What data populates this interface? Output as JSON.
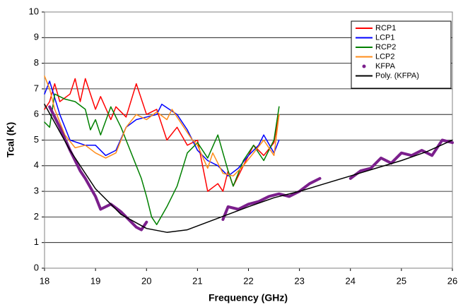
{
  "chart_data": {
    "type": "line",
    "x_label": "Frequency (GHz)",
    "y_label": "Tcal (K)",
    "xlim": [
      18,
      26
    ],
    "xticks": [
      18,
      19,
      20,
      21,
      22,
      23,
      24,
      25,
      26
    ],
    "ylim": [
      0,
      10
    ],
    "yticks": [
      0,
      1,
      2,
      3,
      4,
      5,
      6,
      7,
      8,
      9,
      10
    ],
    "grid": true,
    "legend": "upper right",
    "series": [
      {
        "name": "RCP1",
        "color": "#ff0000",
        "x": [
          18,
          18.1,
          18.2,
          18.3,
          18.5,
          18.6,
          18.7,
          18.8,
          19.0,
          19.1,
          19.3,
          19.4,
          19.6,
          19.8,
          20.0,
          20.2,
          20.4,
          20.6,
          20.8,
          21.0,
          21.1,
          21.2,
          21.4,
          21.5,
          21.6,
          21.7,
          21.9,
          22.1,
          22.3,
          22.5,
          22.6
        ],
        "values": [
          6.2,
          6.5,
          7.2,
          6.5,
          6.8,
          7.4,
          6.5,
          7.4,
          6.2,
          6.7,
          5.8,
          6.3,
          5.9,
          7.2,
          6.0,
          6.2,
          5.0,
          5.5,
          4.8,
          5.0,
          4.0,
          3.0,
          3.3,
          3.0,
          3.8,
          3.2,
          4.0,
          4.8,
          4.4,
          4.9,
          6.0
        ]
      },
      {
        "name": "LCP1",
        "color": "#0000ff",
        "x": [
          18,
          18.1,
          18.3,
          18.5,
          18.8,
          19.0,
          19.2,
          19.4,
          19.6,
          19.8,
          20.0,
          20.2,
          20.3,
          20.6,
          20.8,
          21.0,
          21.2,
          21.4,
          21.6,
          21.8,
          22.0,
          22.2,
          22.3,
          22.5,
          22.6
        ],
        "values": [
          6.8,
          7.3,
          6.0,
          5.0,
          4.8,
          4.8,
          4.4,
          4.6,
          5.5,
          5.8,
          5.9,
          6.0,
          6.4,
          6.0,
          5.4,
          4.6,
          4.2,
          4.0,
          3.6,
          3.9,
          4.4,
          4.8,
          5.2,
          4.5,
          5.0
        ]
      },
      {
        "name": "RCP2",
        "color": "#008000",
        "x": [
          18,
          18.1,
          18.2,
          18.4,
          18.6,
          18.8,
          18.9,
          19.0,
          19.1,
          19.3,
          19.5,
          19.6,
          19.8,
          19.9,
          20.0,
          20.1,
          20.2,
          20.4,
          20.6,
          20.8,
          21.0,
          21.2,
          21.4,
          21.5,
          21.6,
          21.7,
          21.9,
          22.1,
          22.3,
          22.5,
          22.6
        ],
        "values": [
          5.7,
          5.5,
          6.8,
          6.6,
          6.5,
          6.2,
          5.4,
          5.8,
          5.2,
          6.3,
          5.5,
          5.0,
          4.0,
          3.5,
          2.8,
          2.0,
          1.7,
          2.4,
          3.2,
          4.5,
          4.9,
          4.3,
          5.2,
          4.5,
          3.8,
          3.2,
          4.2,
          4.8,
          4.2,
          5.0,
          6.3
        ]
      },
      {
        "name": "LCP2",
        "color": "#ff8c1a",
        "x": [
          18,
          18.1,
          18.2,
          18.4,
          18.6,
          18.8,
          19.0,
          19.2,
          19.4,
          19.6,
          19.8,
          20.0,
          20.2,
          20.4,
          20.5,
          20.7,
          20.9,
          21.0,
          21.2,
          21.3,
          21.5,
          21.7,
          21.9,
          22.1,
          22.3,
          22.5,
          22.6
        ],
        "values": [
          7.5,
          7.0,
          6.2,
          5.2,
          4.7,
          4.8,
          4.5,
          4.3,
          4.5,
          5.5,
          6.0,
          5.8,
          6.1,
          5.8,
          6.2,
          5.6,
          5.0,
          4.8,
          3.9,
          4.5,
          3.7,
          3.6,
          4.0,
          4.5,
          5.0,
          4.4,
          6.0
        ]
      },
      {
        "name": "KFPA",
        "color": "#7b1f8c",
        "marker": "dot",
        "x": [
          18.1,
          18.3,
          18.5,
          18.7,
          18.8,
          19.0,
          19.1,
          19.3,
          19.5,
          19.6,
          19.8,
          19.9,
          20.0,
          20.7,
          21.5,
          21.6,
          21.8,
          22.0,
          22.2,
          22.4,
          22.6,
          22.8,
          23.0,
          23.2,
          23.4,
          23.7,
          24.0,
          24.2,
          24.4,
          24.6,
          24.8,
          25.0,
          25.2,
          25.4,
          25.6,
          25.8,
          26.0
        ],
        "values": [
          6.3,
          5.5,
          4.6,
          3.8,
          3.5,
          2.8,
          2.3,
          2.5,
          2.2,
          2.0,
          1.6,
          1.5,
          1.8,
          null,
          1.9,
          2.4,
          2.3,
          2.5,
          2.6,
          2.8,
          2.9,
          2.8,
          3.0,
          3.3,
          3.5,
          null,
          3.5,
          3.8,
          3.9,
          4.3,
          4.1,
          4.5,
          4.4,
          4.6,
          4.4,
          5.0,
          4.9
        ]
      },
      {
        "name": "Poly. (KFPA)",
        "color": "#000000",
        "x": [
          18.0,
          18.5,
          19.0,
          19.5,
          20.0,
          20.4,
          20.8,
          21.2,
          21.6,
          22.0,
          22.5,
          23.0,
          23.5,
          24.0,
          24.5,
          25.0,
          25.5,
          26.0
        ],
        "values": [
          6.4,
          4.6,
          3.1,
          2.1,
          1.55,
          1.4,
          1.5,
          1.8,
          2.1,
          2.4,
          2.75,
          3.0,
          3.3,
          3.6,
          3.9,
          4.2,
          4.55,
          5.0
        ]
      }
    ]
  }
}
